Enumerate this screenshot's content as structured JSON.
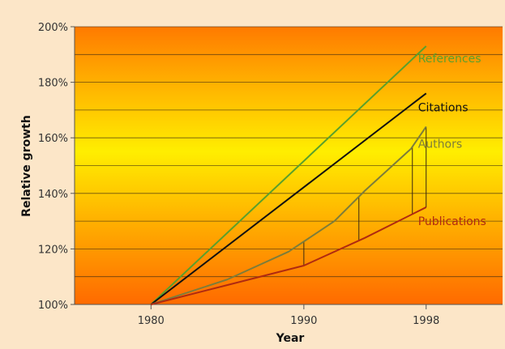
{
  "chart_data": {
    "type": "line",
    "title": "",
    "xlabel": "Year",
    "ylabel": "Relative growth",
    "x_ticks": [
      "1980",
      "1990",
      "1998"
    ],
    "y_ticks": [
      "100%",
      "120%",
      "140%",
      "160%",
      "180%",
      "200%"
    ],
    "xlim": [
      1975,
      2003
    ],
    "ylim": [
      100,
      200
    ],
    "grid": true,
    "series": [
      {
        "name": "References",
        "color": "#5aa02c",
        "x": [
          1980,
          1998
        ],
        "y": [
          100,
          193
        ]
      },
      {
        "name": "Citations",
        "color": "#111111",
        "x": [
          1980,
          1998
        ],
        "y": [
          100,
          176
        ]
      },
      {
        "name": "Authors",
        "color": "#7d7d3a",
        "x": [
          1980,
          1985,
          1989,
          1992,
          1994,
          1997,
          1998
        ],
        "y": [
          100,
          109,
          119,
          130,
          141,
          156,
          164
        ]
      },
      {
        "name": "Publications",
        "color": "#b02a10",
        "x": [
          1980,
          1985,
          1990,
          1994,
          1998
        ],
        "y": [
          100,
          107,
          114,
          124,
          135
        ]
      }
    ],
    "annotations": {
      "type": "difference-lines",
      "between": [
        "Authors",
        "Publications"
      ],
      "x": [
        1990,
        1993.6,
        1997.1,
        1998
      ]
    }
  }
}
